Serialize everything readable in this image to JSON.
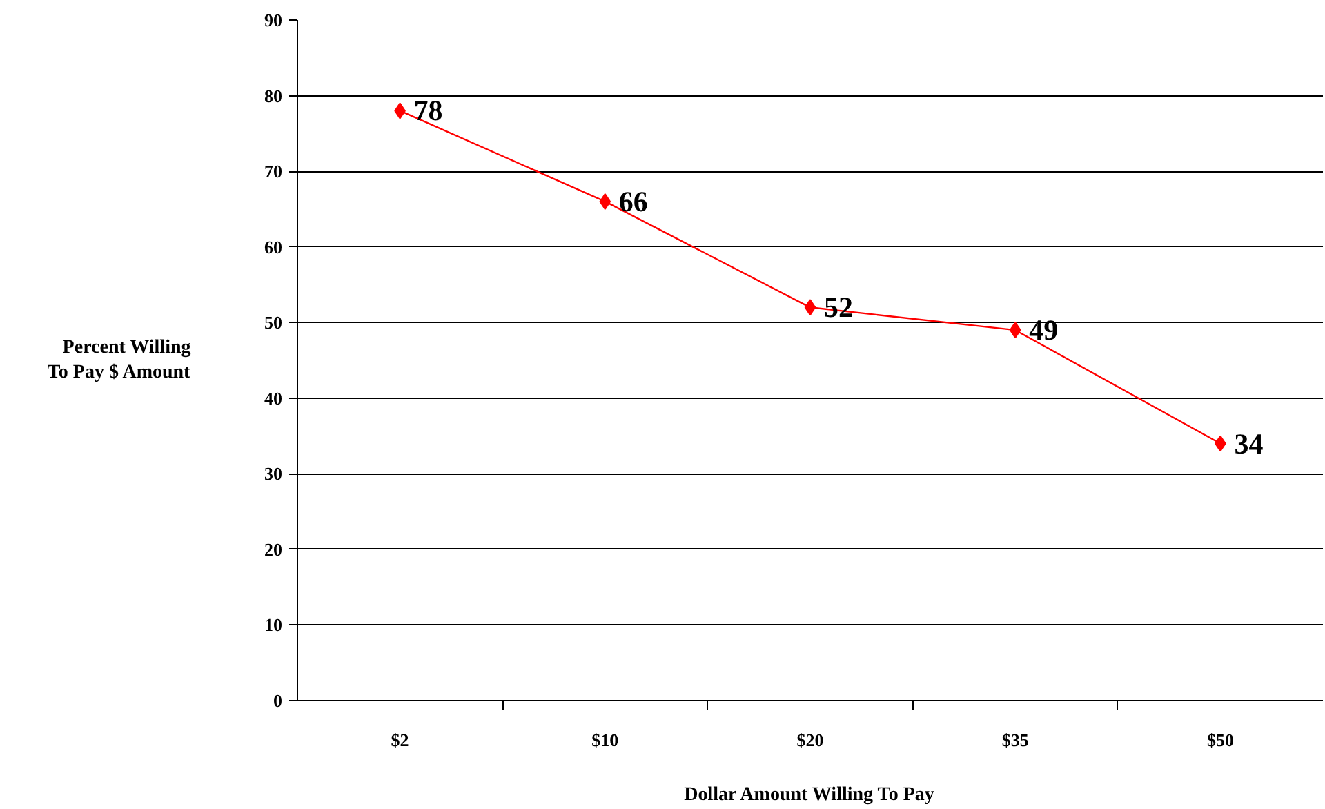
{
  "chart_data": {
    "type": "line",
    "xlabel": "Dollar Amount Willing To Pay",
    "ylabel": "Percent Willing\nTo Pay $ Amount",
    "categories": [
      "$2",
      "$10",
      "$20",
      "$35",
      "$50"
    ],
    "series": [
      {
        "color": "#ff0000",
        "values": [
          78,
          66,
          52,
          49,
          34
        ]
      }
    ],
    "ylim": [
      0,
      90
    ],
    "yticks": [
      0,
      10,
      20,
      30,
      40,
      50,
      60,
      70,
      80,
      90
    ],
    "grid": "y",
    "marker": "diamond",
    "line_style": "solid",
    "data_labels": true
  }
}
